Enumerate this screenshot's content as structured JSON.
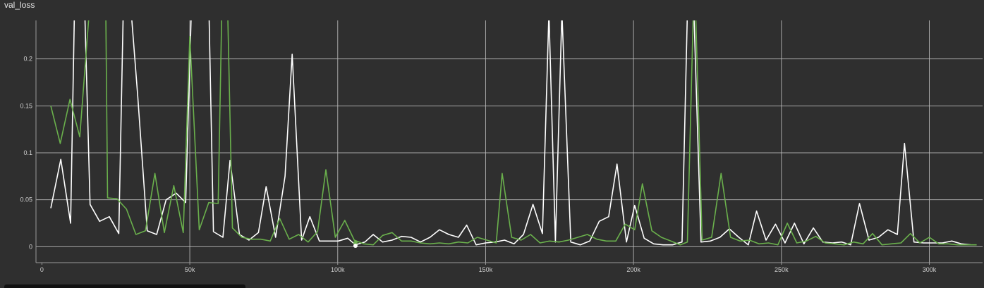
{
  "chart_data": {
    "type": "line",
    "title": "val_loss",
    "xlabel": "",
    "ylabel": "",
    "xlim": [
      -2000,
      318000
    ],
    "ylim": [
      -0.017,
      0.241
    ],
    "x_ticks": [
      0,
      50000,
      100000,
      150000,
      200000,
      250000,
      300000
    ],
    "x_tick_labels": [
      "0",
      "50k",
      "100k",
      "150k",
      "200k",
      "250k",
      "300k"
    ],
    "y_ticks": [
      0,
      0.05,
      0.1,
      0.15,
      0.2
    ],
    "y_tick_labels": [
      "0",
      "0.05",
      "0.1",
      "0.15",
      "0.2"
    ],
    "grid": true,
    "series": [
      {
        "color": "#ffffff",
        "points": [
          [
            3000,
            0.041
          ],
          [
            6400,
            0.093
          ],
          [
            9700,
            0.025
          ],
          [
            11000,
            0.25
          ],
          [
            14500,
            0.25
          ],
          [
            16300,
            0.045
          ],
          [
            19500,
            0.027
          ],
          [
            22800,
            0.032
          ],
          [
            26000,
            0.014
          ],
          [
            27500,
            0.25
          ],
          [
            30200,
            0.25
          ],
          [
            32400,
            0.16
          ],
          [
            35600,
            0.017
          ],
          [
            38800,
            0.013
          ],
          [
            42000,
            0.05
          ],
          [
            45400,
            0.057
          ],
          [
            48600,
            0.047
          ],
          [
            50500,
            0.25
          ],
          [
            53300,
            0.25
          ],
          [
            56500,
            0.25
          ],
          [
            58000,
            0.016
          ],
          [
            61200,
            0.01
          ],
          [
            63600,
            0.092
          ],
          [
            66800,
            0.013
          ],
          [
            70000,
            0.007
          ],
          [
            73200,
            0.015
          ],
          [
            75800,
            0.064
          ],
          [
            79000,
            0.01
          ],
          [
            82200,
            0.075
          ],
          [
            84600,
            0.205
          ],
          [
            87800,
            0.007
          ],
          [
            90600,
            0.032
          ],
          [
            93800,
            0.006
          ],
          [
            97000,
            0.006
          ],
          [
            100200,
            0.006
          ],
          [
            103400,
            0.009
          ],
          [
            106000,
            0.002
          ],
          [
            109200,
            0.005
          ],
          [
            112000,
            0.013
          ],
          [
            115200,
            0.005
          ],
          [
            118400,
            0.007
          ],
          [
            121600,
            0.011
          ],
          [
            124800,
            0.01
          ],
          [
            128000,
            0.005
          ],
          [
            131200,
            0.01
          ],
          [
            134400,
            0.018
          ],
          [
            137600,
            0.013
          ],
          [
            140800,
            0.01
          ],
          [
            143600,
            0.023
          ],
          [
            146800,
            0.002
          ],
          [
            150000,
            0.004
          ],
          [
            153200,
            0.005
          ],
          [
            156400,
            0.007
          ],
          [
            159600,
            0.003
          ],
          [
            162800,
            0.013
          ],
          [
            166000,
            0.045
          ],
          [
            169200,
            0.014
          ],
          [
            171400,
            0.25
          ],
          [
            173600,
            0.005
          ],
          [
            175800,
            0.25
          ],
          [
            178800,
            0.005
          ],
          [
            182000,
            0.002
          ],
          [
            185200,
            0.006
          ],
          [
            188400,
            0.027
          ],
          [
            191600,
            0.032
          ],
          [
            194400,
            0.088
          ],
          [
            197600,
            0.005
          ],
          [
            200400,
            0.044
          ],
          [
            203600,
            0.009
          ],
          [
            206800,
            0.003
          ],
          [
            210000,
            0.002
          ],
          [
            213200,
            0.002
          ],
          [
            216400,
            0.005
          ],
          [
            218200,
            0.25
          ],
          [
            220400,
            0.25
          ],
          [
            222800,
            0.005
          ],
          [
            226000,
            0.006
          ],
          [
            229200,
            0.01
          ],
          [
            232400,
            0.019
          ],
          [
            235600,
            0.01
          ],
          [
            238800,
            0.002
          ],
          [
            241600,
            0.038
          ],
          [
            244800,
            0.007
          ],
          [
            248000,
            0.024
          ],
          [
            251200,
            0.004
          ],
          [
            254400,
            0.025
          ],
          [
            257600,
            0.003
          ],
          [
            260800,
            0.02
          ],
          [
            264000,
            0.005
          ],
          [
            267200,
            0.004
          ],
          [
            270400,
            0.005
          ],
          [
            273400,
            0.002
          ],
          [
            276400,
            0.046
          ],
          [
            279600,
            0.007
          ],
          [
            282800,
            0.01
          ],
          [
            286000,
            0.018
          ],
          [
            289200,
            0.013
          ],
          [
            291600,
            0.11
          ],
          [
            294800,
            0.005
          ],
          [
            298000,
            0.004
          ],
          [
            301200,
            0.004
          ],
          [
            304400,
            0.004
          ],
          [
            307600,
            0.006
          ],
          [
            310800,
            0.003
          ],
          [
            314000,
            0.002
          ]
        ]
      },
      {
        "color": "#6ab04c",
        "points": [
          [
            3000,
            0.15
          ],
          [
            6200,
            0.11
          ],
          [
            9500,
            0.157
          ],
          [
            12800,
            0.117
          ],
          [
            16000,
            0.25
          ],
          [
            21600,
            0.25
          ],
          [
            22200,
            0.052
          ],
          [
            25400,
            0.051
          ],
          [
            28600,
            0.04
          ],
          [
            31800,
            0.013
          ],
          [
            35000,
            0.017
          ],
          [
            38200,
            0.078
          ],
          [
            41400,
            0.015
          ],
          [
            44600,
            0.065
          ],
          [
            47800,
            0.015
          ],
          [
            50000,
            0.224
          ],
          [
            53200,
            0.018
          ],
          [
            56400,
            0.047
          ],
          [
            59600,
            0.046
          ],
          [
            60800,
            0.25
          ],
          [
            62800,
            0.25
          ],
          [
            64400,
            0.02
          ],
          [
            67600,
            0.01
          ],
          [
            70800,
            0.008
          ],
          [
            74000,
            0.008
          ],
          [
            77200,
            0.006
          ],
          [
            80400,
            0.03
          ],
          [
            83600,
            0.008
          ],
          [
            86800,
            0.013
          ],
          [
            90000,
            0.005
          ],
          [
            93200,
            0.016
          ],
          [
            96000,
            0.082
          ],
          [
            99200,
            0.01
          ],
          [
            102400,
            0.028
          ],
          [
            105600,
            0.007
          ],
          [
            108800,
            0.003
          ],
          [
            112000,
            0.002
          ],
          [
            115200,
            0.012
          ],
          [
            118400,
            0.015
          ],
          [
            121600,
            0.006
          ],
          [
            124800,
            0.006
          ],
          [
            128000,
            0.004
          ],
          [
            131200,
            0.003
          ],
          [
            134400,
            0.004
          ],
          [
            137600,
            0.003
          ],
          [
            140800,
            0.005
          ],
          [
            144000,
            0.004
          ],
          [
            147200,
            0.01
          ],
          [
            150400,
            0.007
          ],
          [
            153600,
            0.004
          ],
          [
            155600,
            0.078
          ],
          [
            158800,
            0.01
          ],
          [
            162000,
            0.007
          ],
          [
            165200,
            0.013
          ],
          [
            168400,
            0.004
          ],
          [
            171600,
            0.006
          ],
          [
            174800,
            0.005
          ],
          [
            178000,
            0.007
          ],
          [
            181200,
            0.01
          ],
          [
            184400,
            0.013
          ],
          [
            187600,
            0.008
          ],
          [
            190800,
            0.006
          ],
          [
            194000,
            0.006
          ],
          [
            197200,
            0.024
          ],
          [
            200400,
            0.018
          ],
          [
            203000,
            0.067
          ],
          [
            206200,
            0.017
          ],
          [
            209400,
            0.01
          ],
          [
            212600,
            0.006
          ],
          [
            215800,
            0.002
          ],
          [
            218200,
            0.005
          ],
          [
            220200,
            0.25
          ],
          [
            221000,
            0.25
          ],
          [
            223200,
            0.007
          ],
          [
            226400,
            0.01
          ],
          [
            229600,
            0.078
          ],
          [
            232800,
            0.01
          ],
          [
            236000,
            0.006
          ],
          [
            239200,
            0.007
          ],
          [
            242400,
            0.003
          ],
          [
            245600,
            0.004
          ],
          [
            248800,
            0.002
          ],
          [
            252000,
            0.025
          ],
          [
            255200,
            0.004
          ],
          [
            258400,
            0.006
          ],
          [
            261600,
            0.011
          ],
          [
            264800,
            0.004
          ],
          [
            268000,
            0.003
          ],
          [
            271200,
            0.002
          ],
          [
            274400,
            0.005
          ],
          [
            277600,
            0.003
          ],
          [
            280800,
            0.014
          ],
          [
            284000,
            0.002
          ],
          [
            287200,
            0.003
          ],
          [
            290400,
            0.004
          ],
          [
            293600,
            0.014
          ],
          [
            296800,
            0.004
          ],
          [
            300000,
            0.01
          ],
          [
            303200,
            0.003
          ],
          [
            306400,
            0.003
          ],
          [
            309600,
            0.002
          ],
          [
            312800,
            0.002
          ],
          [
            316000,
            0.002
          ]
        ]
      }
    ],
    "markers": [
      {
        "x": 106000,
        "y": 0.004,
        "color": "#6ab04c"
      },
      {
        "x": 106000,
        "y": 0.001,
        "color": "#ffffff"
      }
    ]
  }
}
